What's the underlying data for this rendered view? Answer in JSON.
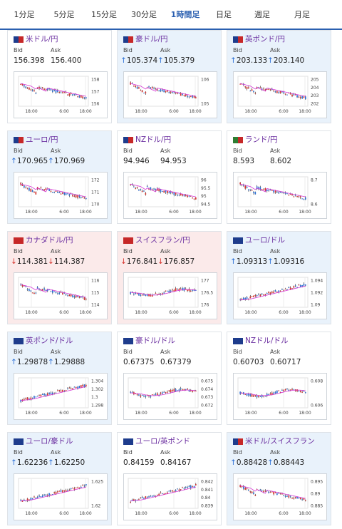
{
  "tabs": [
    "1分足",
    "5分足",
    "15分足",
    "30分足",
    "1時間足",
    "日足",
    "週足",
    "月足"
  ],
  "active_tab": "1時間足",
  "bid_label": "Bid",
  "ask_label": "Ask",
  "colors": {
    "accent": "#2a5fb0",
    "pair_text": "#6b2fa0",
    "up": "#2a6fd6",
    "down": "#d6302a",
    "ma": "#d636d6"
  },
  "cards": [
    {
      "pair": "米ドル/円",
      "bid": "156.398",
      "ask": "156.400",
      "dir": "",
      "flags": [
        "#1e3c8c",
        "#c62828"
      ],
      "bg": "white",
      "y_ticks": [
        "158",
        "157",
        "156"
      ],
      "x_ticks": [
        "18:00",
        "6:00",
        "18:00"
      ],
      "trend": "down"
    },
    {
      "pair": "豪ドル/円",
      "bid": "105.374",
      "ask": "105.379",
      "dir": "up",
      "flags": [
        "#1e3c8c",
        "#c62828"
      ],
      "bg": "blue",
      "y_ticks": [
        "106",
        "105"
      ],
      "x_ticks": [
        "18:00",
        "6:00",
        "18:00"
      ],
      "trend": "down"
    },
    {
      "pair": "英ポンド/円",
      "bid": "203.133",
      "ask": "203.140",
      "dir": "up",
      "flags": [
        "#1e3c8c",
        "#c62828"
      ],
      "bg": "blue",
      "y_ticks": [
        "205",
        "204",
        "203",
        "202"
      ],
      "x_ticks": [
        "18:00",
        "6:00",
        "18:00"
      ],
      "trend": "down"
    },
    {
      "pair": "ユーロ/円",
      "bid": "170.965",
      "ask": "170.969",
      "dir": "up",
      "flags": [
        "#1e3c8c",
        "#c62828"
      ],
      "bg": "blue",
      "y_ticks": [
        "172",
        "171",
        "170"
      ],
      "x_ticks": [
        "18:00",
        "6:00",
        "18:00"
      ],
      "trend": "down"
    },
    {
      "pair": "NZドル/円",
      "bid": "94.946",
      "ask": "94.953",
      "dir": "",
      "flags": [
        "#1e3c8c",
        "#c62828"
      ],
      "bg": "white",
      "y_ticks": [
        "96",
        "95.5",
        "95",
        "94.5"
      ],
      "x_ticks": [
        "18:00",
        "6:00",
        "18:00"
      ],
      "trend": "down"
    },
    {
      "pair": "ランド/円",
      "bid": "8.593",
      "ask": "8.602",
      "dir": "",
      "flags": [
        "#2e7d32",
        "#c62828"
      ],
      "bg": "white",
      "y_ticks": [
        "8.7",
        "8.6"
      ],
      "x_ticks": [
        "18:00",
        "6:00",
        "18:00"
      ],
      "trend": "down"
    },
    {
      "pair": "カナダドル/円",
      "bid": "114.381",
      "ask": "114.387",
      "dir": "down",
      "flags": [
        "#c62828",
        "#c62828"
      ],
      "bg": "pink",
      "y_ticks": [
        "116",
        "115",
        "114"
      ],
      "x_ticks": [
        "18:00",
        "6:00",
        "18:00"
      ],
      "trend": "down"
    },
    {
      "pair": "スイスフラン/円",
      "bid": "176.841",
      "ask": "176.857",
      "dir": "down",
      "flags": [
        "#c62828",
        "#c62828"
      ],
      "bg": "pink",
      "y_ticks": [
        "177",
        "176.5",
        "176"
      ],
      "x_ticks": [
        "18:00",
        "6:00",
        "18:00"
      ],
      "trend": "flat"
    },
    {
      "pair": "ユーロ/ドル",
      "bid": "1.09313",
      "ask": "1.09316",
      "dir": "up",
      "flags": [
        "#1e3c8c",
        "#1e3c8c"
      ],
      "bg": "blue",
      "y_ticks": [
        "1.094",
        "1.092",
        "1.09"
      ],
      "x_ticks": [
        "18:00",
        "6:00",
        "18:00"
      ],
      "trend": "up"
    },
    {
      "pair": "英ポンド/ドル",
      "bid": "1.29878",
      "ask": "1.29888",
      "dir": "up",
      "flags": [
        "#1e3c8c",
        "#1e3c8c"
      ],
      "bg": "blue",
      "y_ticks": [
        "1.304",
        "1.302",
        "1.3",
        "1.298"
      ],
      "x_ticks": [
        "18:00",
        "6:00",
        "18:00"
      ],
      "trend": "up"
    },
    {
      "pair": "豪ドル/ドル",
      "bid": "0.67375",
      "ask": "0.67379",
      "dir": "",
      "flags": [
        "#1e3c8c",
        "#1e3c8c"
      ],
      "bg": "white",
      "y_ticks": [
        "0.675",
        "0.674",
        "0.673",
        "0.672"
      ],
      "x_ticks": [
        "18:00",
        "6:00",
        "18:00"
      ],
      "trend": "flat"
    },
    {
      "pair": "NZドル/ドル",
      "bid": "0.60703",
      "ask": "0.60717",
      "dir": "",
      "flags": [
        "#1e3c8c",
        "#1e3c8c"
      ],
      "bg": "white",
      "y_ticks": [
        "0.608",
        "0.606"
      ],
      "x_ticks": [
        "18:00",
        "6:00",
        "18:00"
      ],
      "trend": "flat"
    },
    {
      "pair": "ユーロ/豪ドル",
      "bid": "1.62236",
      "ask": "1.62250",
      "dir": "up",
      "flags": [
        "#1e3c8c",
        "#1e3c8c"
      ],
      "bg": "blue",
      "y_ticks": [
        "1.625",
        "1.62"
      ],
      "x_ticks": [
        "18:00",
        "6:00",
        "18:00"
      ],
      "trend": "up"
    },
    {
      "pair": "ユーロ/英ポンド",
      "bid": "0.84159",
      "ask": "0.84167",
      "dir": "",
      "flags": [
        "#1e3c8c",
        "#1e3c8c"
      ],
      "bg": "white",
      "y_ticks": [
        "0.842",
        "0.841",
        "0.84",
        "0.839"
      ],
      "x_ticks": [
        "18:00",
        "6:00",
        "18:00"
      ],
      "trend": "up"
    },
    {
      "pair": "米ドル/スイスフラン",
      "bid": "0.88428",
      "ask": "0.88443",
      "dir": "up",
      "flags": [
        "#1e3c8c",
        "#c62828"
      ],
      "bg": "blue",
      "y_ticks": [
        "0.895",
        "0.89",
        "0.885"
      ],
      "x_ticks": [
        "18:00",
        "6:00",
        "18:00"
      ],
      "trend": "down"
    }
  ]
}
